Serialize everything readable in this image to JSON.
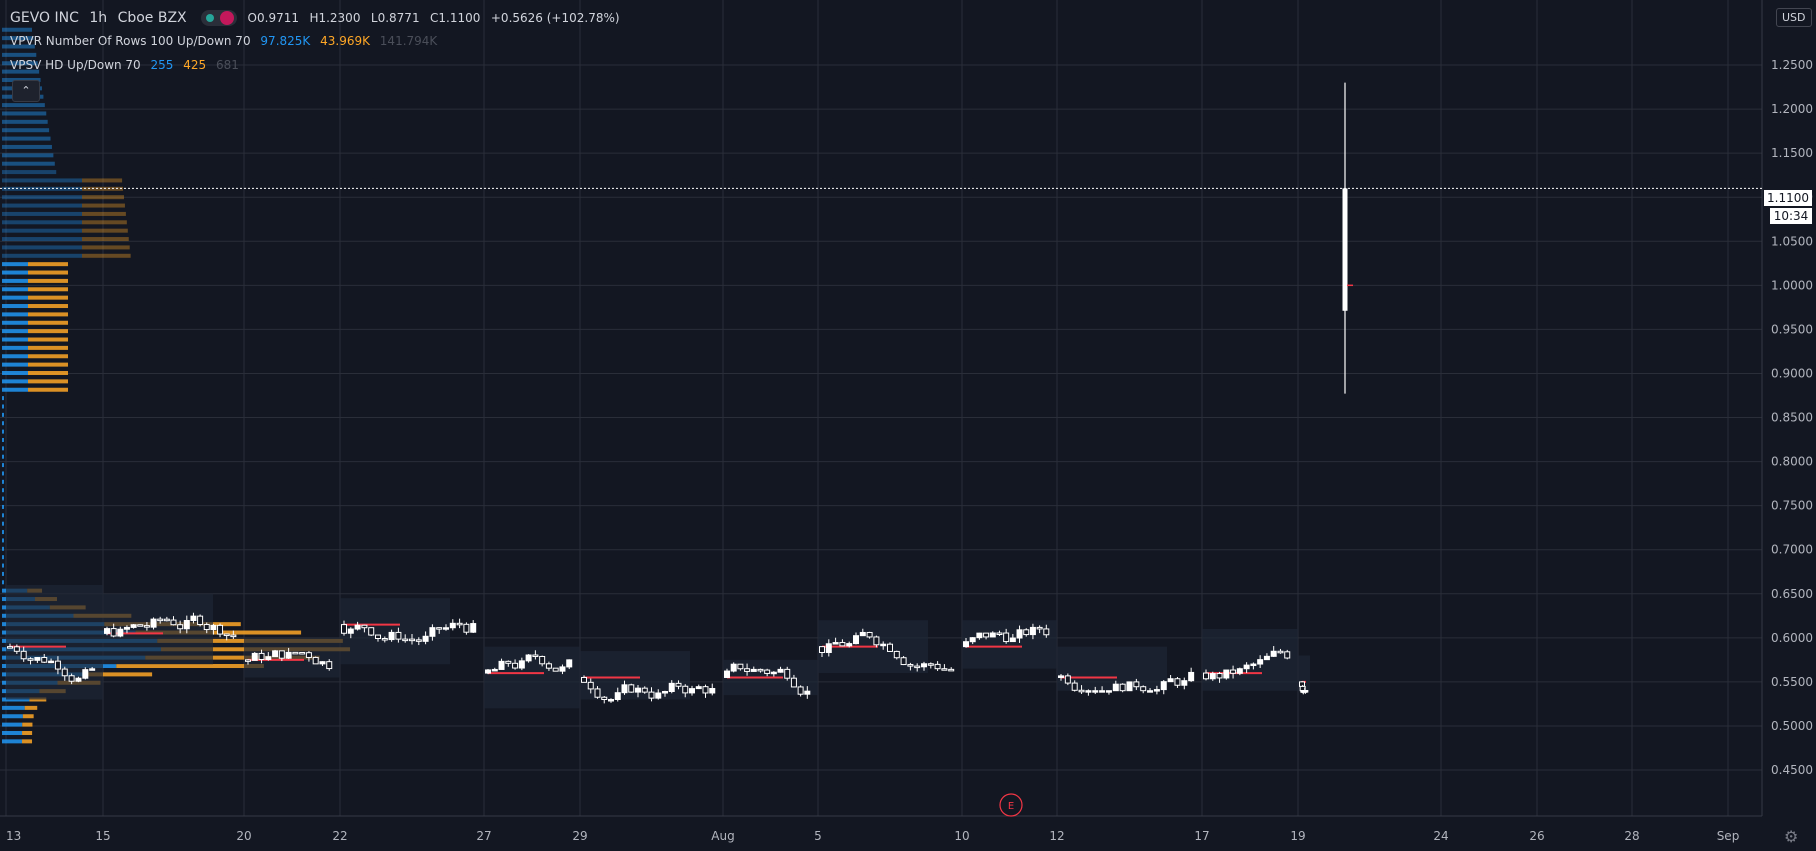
{
  "legend": {
    "symbol": "GEVO INC",
    "interval": "1h",
    "exchange": "Cboe BZX",
    "open": "O0.9711",
    "high": "H1.2300",
    "low": "L0.8771",
    "close": "C1.1100",
    "change": "+0.5626 (+102.78%)",
    "vpvr_title": "VPVR Number Of Rows 100 Up/Down 70",
    "vpvr_up": "97.825K",
    "vpvr_down": "43.969K",
    "vpvr_total": "141.794K",
    "vpsv_title": "VPSV HD Up/Down 70",
    "vpsv_up": "255",
    "vpsv_down": "425",
    "vpsv_total": "681"
  },
  "currency": "USD",
  "last_price_label": "1.1100",
  "countdown_label": "10:34",
  "earnings_marker": "E",
  "colors": {
    "background": "#131722",
    "grid": "#2a2e39",
    "up_volume": "#2196f3",
    "down_volume": "#ffa726",
    "candle": "#ffffff",
    "poc": "#f23645"
  },
  "chart_data": {
    "type": "candlestick",
    "y_ticks": [
      "1.2500",
      "1.2000",
      "1.1500",
      "1.1000",
      "1.0500",
      "1.0000",
      "0.9500",
      "0.9000",
      "0.8500",
      "0.8000",
      "0.7500",
      "0.7000",
      "0.6500",
      "0.6000",
      "0.5500",
      "0.5000",
      "0.4500"
    ],
    "ylim": [
      0.445,
      1.295
    ],
    "x_ticks": [
      "13",
      "15",
      "20",
      "22",
      "27",
      "29",
      "Aug",
      "5",
      "10",
      "12",
      "17",
      "19",
      "24",
      "26",
      "28",
      "Sep"
    ],
    "last_price": 1.11,
    "last_bar": {
      "open": 0.9711,
      "high": 1.23,
      "low": 0.8771,
      "close": 1.11
    },
    "sessions": [
      {
        "label": "13",
        "mid": 0.59,
        "range": [
          0.53,
          0.66
        ]
      },
      {
        "label": "15",
        "mid": 0.605,
        "range": [
          0.57,
          0.65
        ]
      },
      {
        "label": "20",
        "mid": 0.575,
        "range": [
          0.555,
          0.6
        ]
      },
      {
        "label": "22",
        "mid": 0.615,
        "range": [
          0.57,
          0.645
        ]
      },
      {
        "label": "27",
        "mid": 0.56,
        "range": [
          0.52,
          0.59
        ]
      },
      {
        "label": "29",
        "mid": 0.555,
        "range": [
          0.53,
          0.585
        ]
      },
      {
        "label": "Aug",
        "mid": 0.555,
        "range": [
          0.535,
          0.575
        ]
      },
      {
        "label": "5",
        "mid": 0.59,
        "range": [
          0.56,
          0.62
        ]
      },
      {
        "label": "10",
        "mid": 0.59,
        "range": [
          0.565,
          0.62
        ]
      },
      {
        "label": "12",
        "mid": 0.555,
        "range": [
          0.54,
          0.59
        ]
      },
      {
        "label": "17",
        "mid": 0.56,
        "range": [
          0.54,
          0.61
        ]
      },
      {
        "label": "19",
        "mid": 0.55,
        "range": [
          0.54,
          0.58
        ]
      }
    ]
  }
}
